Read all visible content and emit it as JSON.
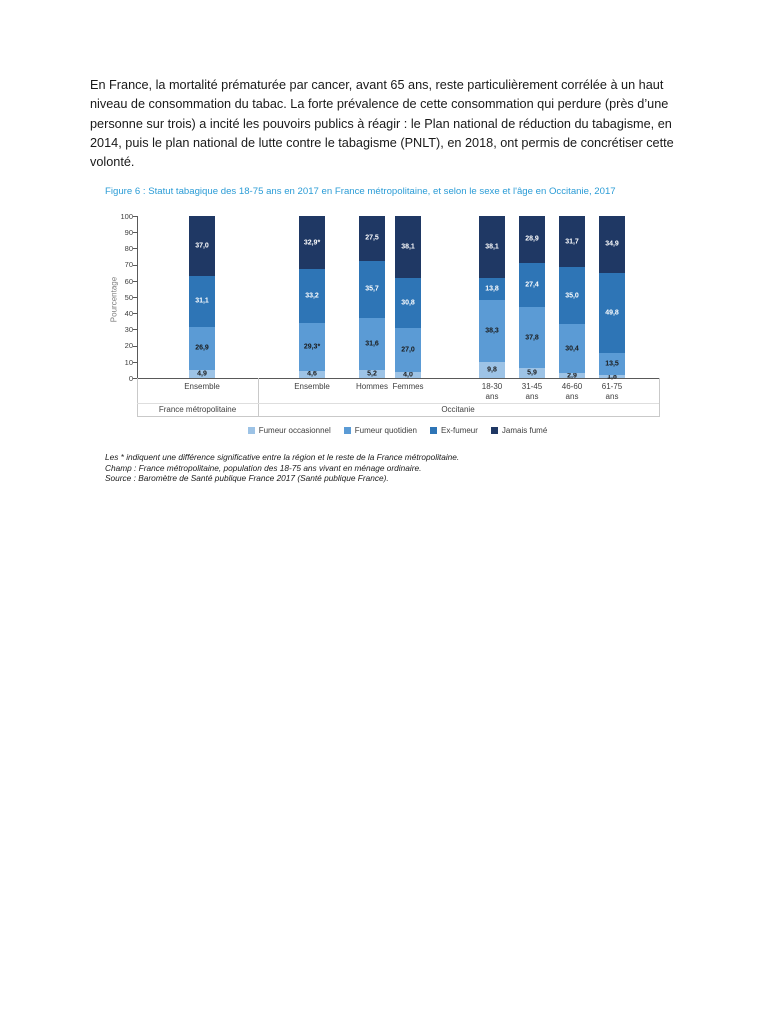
{
  "page": {
    "paragraph": "En France, la mortalité prématurée par cancer, avant 65 ans, reste particulièrement corrélée à un haut niveau de consommation du tabac. La forte prévalence de cette consommation qui perdure (près d’une personne sur trois) a incité les pouvoirs publics à réagir : le Plan national de réduction du tabagisme, en 2014, puis le plan national de lutte contre le tabagisme (PNLT), en 2018, ont permis de concrétiser cette volonté.",
    "footnotes": [
      "Les * indiquent une différence significative entre la région et le reste de la France métropolitaine.",
      "Champ : France métropolitaine, population des 18-75 ans vivant en ménage ordinaire.",
      "Source : Baromètre de Santé publique France 2017 (Santé publique France)."
    ]
  },
  "chart_data": {
    "type": "bar",
    "stacked": true,
    "title": "Figure 6 : Statut tabagique des 18-75 ans en 2017 en France métropolitaine, et selon le sexe et l'âge en Occitanie, 2017",
    "ylabel": "Pourcentage",
    "xlabel": "",
    "ylim": [
      0,
      100
    ],
    "yticks": [
      0,
      10,
      20,
      30,
      40,
      50,
      60,
      70,
      80,
      90,
      100
    ],
    "grid": false,
    "legend_position": "bottom",
    "categories": [
      "Ensemble",
      "Ensemble",
      "Hommes",
      "Femmes",
      "18-30\nans",
      "31-45\nans",
      "46-60\nans",
      "61-75\nans"
    ],
    "groups": [
      {
        "label": "France métropolitaine",
        "bars": [
          0
        ]
      },
      {
        "label": "Occitanie",
        "bars": [
          1,
          2,
          3,
          4,
          5,
          6,
          7
        ]
      }
    ],
    "series": [
      {
        "name": "Fumeur occasionnel",
        "color": "#9dc3e6",
        "label_color": "#1a1a1a",
        "values": [
          4.9,
          4.6,
          5.2,
          4.0,
          9.8,
          5.9,
          2.9,
          1.8
        ],
        "labels": [
          "4,9",
          "4,6",
          "5,2",
          "4,0",
          "9,8",
          "5,9",
          "2,9",
          "1,8"
        ]
      },
      {
        "name": "Fumeur quotidien",
        "color": "#5b9bd5",
        "label_color": "#1a1a1a",
        "values": [
          26.9,
          29.3,
          31.6,
          27.0,
          38.3,
          37.8,
          30.4,
          13.5
        ],
        "labels": [
          "26,9",
          "29,3*",
          "31,6",
          "27,0",
          "38,3",
          "37,8",
          "30,4",
          "13,5"
        ]
      },
      {
        "name": "Ex-fumeur",
        "color": "#2e75b6",
        "label_color": "#ffffff",
        "values": [
          31.1,
          33.2,
          35.7,
          30.8,
          13.8,
          27.4,
          35.0,
          49.8
        ],
        "labels": [
          "31,1",
          "33,2",
          "35,7",
          "30,8",
          "13,8",
          "27,4",
          "35,0",
          "49,8"
        ]
      },
      {
        "name": "Jamais fumé",
        "color": "#1f3864",
        "label_color": "#ffffff",
        "values": [
          37.0,
          32.9,
          27.5,
          38.1,
          38.1,
          28.9,
          31.7,
          34.9
        ],
        "labels": [
          "37,0",
          "32,9*",
          "27,5",
          "38,1",
          "38,1",
          "28,9",
          "31,7",
          "34,9"
        ]
      }
    ]
  }
}
